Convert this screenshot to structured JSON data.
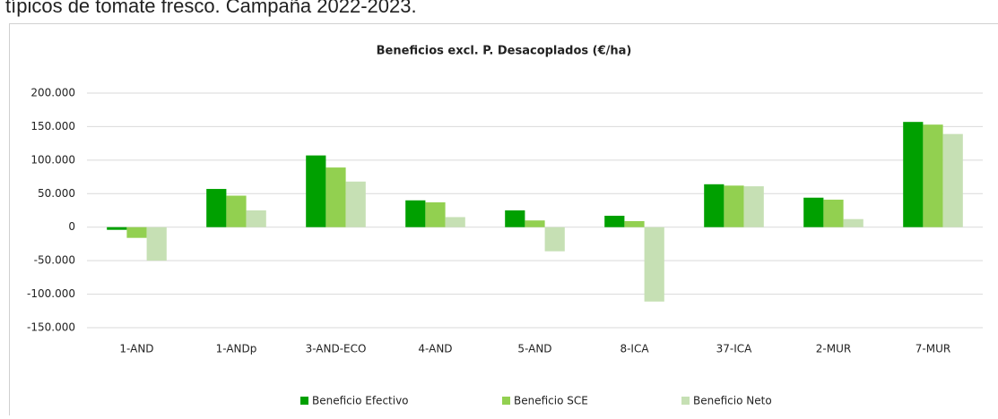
{
  "heading": "típicos de tomate fresco. Campaña 2022-2023.",
  "chart_data": {
    "type": "bar",
    "title": "Beneficios excl. P. Desacoplados (€/ha)",
    "categories": [
      "1-AND",
      "1-ANDp",
      "3-AND-ECO",
      "4-AND",
      "5-AND",
      "8-ICA",
      "37-ICA",
      "2-MUR",
      "7-MUR"
    ],
    "series": [
      {
        "name": "Beneficio Efectivo",
        "color": "#00a000",
        "values": [
          -4000,
          57000,
          107000,
          40000,
          25000,
          17000,
          64000,
          44000,
          157000
        ]
      },
      {
        "name": "Beneficio SCE",
        "color": "#92d050",
        "values": [
          -16000,
          47000,
          89000,
          37000,
          10000,
          9000,
          62000,
          41000,
          153000
        ]
      },
      {
        "name": "Beneficio Neto",
        "color": "#c6e0b4",
        "values": [
          -50000,
          25000,
          68000,
          15000,
          -36000,
          -111000,
          61000,
          12000,
          139000
        ]
      }
    ],
    "ylim": [
      -150000,
      200000
    ],
    "yticks": [
      {
        "value": -150000,
        "label": "-150.000"
      },
      {
        "value": -100000,
        "label": "-100.000"
      },
      {
        "value": -50000,
        "label": "-50.000"
      },
      0,
      {
        "value": 50000,
        "label": "50.000"
      },
      {
        "value": 100000,
        "label": "100.000"
      },
      {
        "value": 150000,
        "label": "150.000"
      },
      {
        "value": 200000,
        "label": "200.000"
      }
    ],
    "grid": true,
    "legend": "bottom"
  }
}
